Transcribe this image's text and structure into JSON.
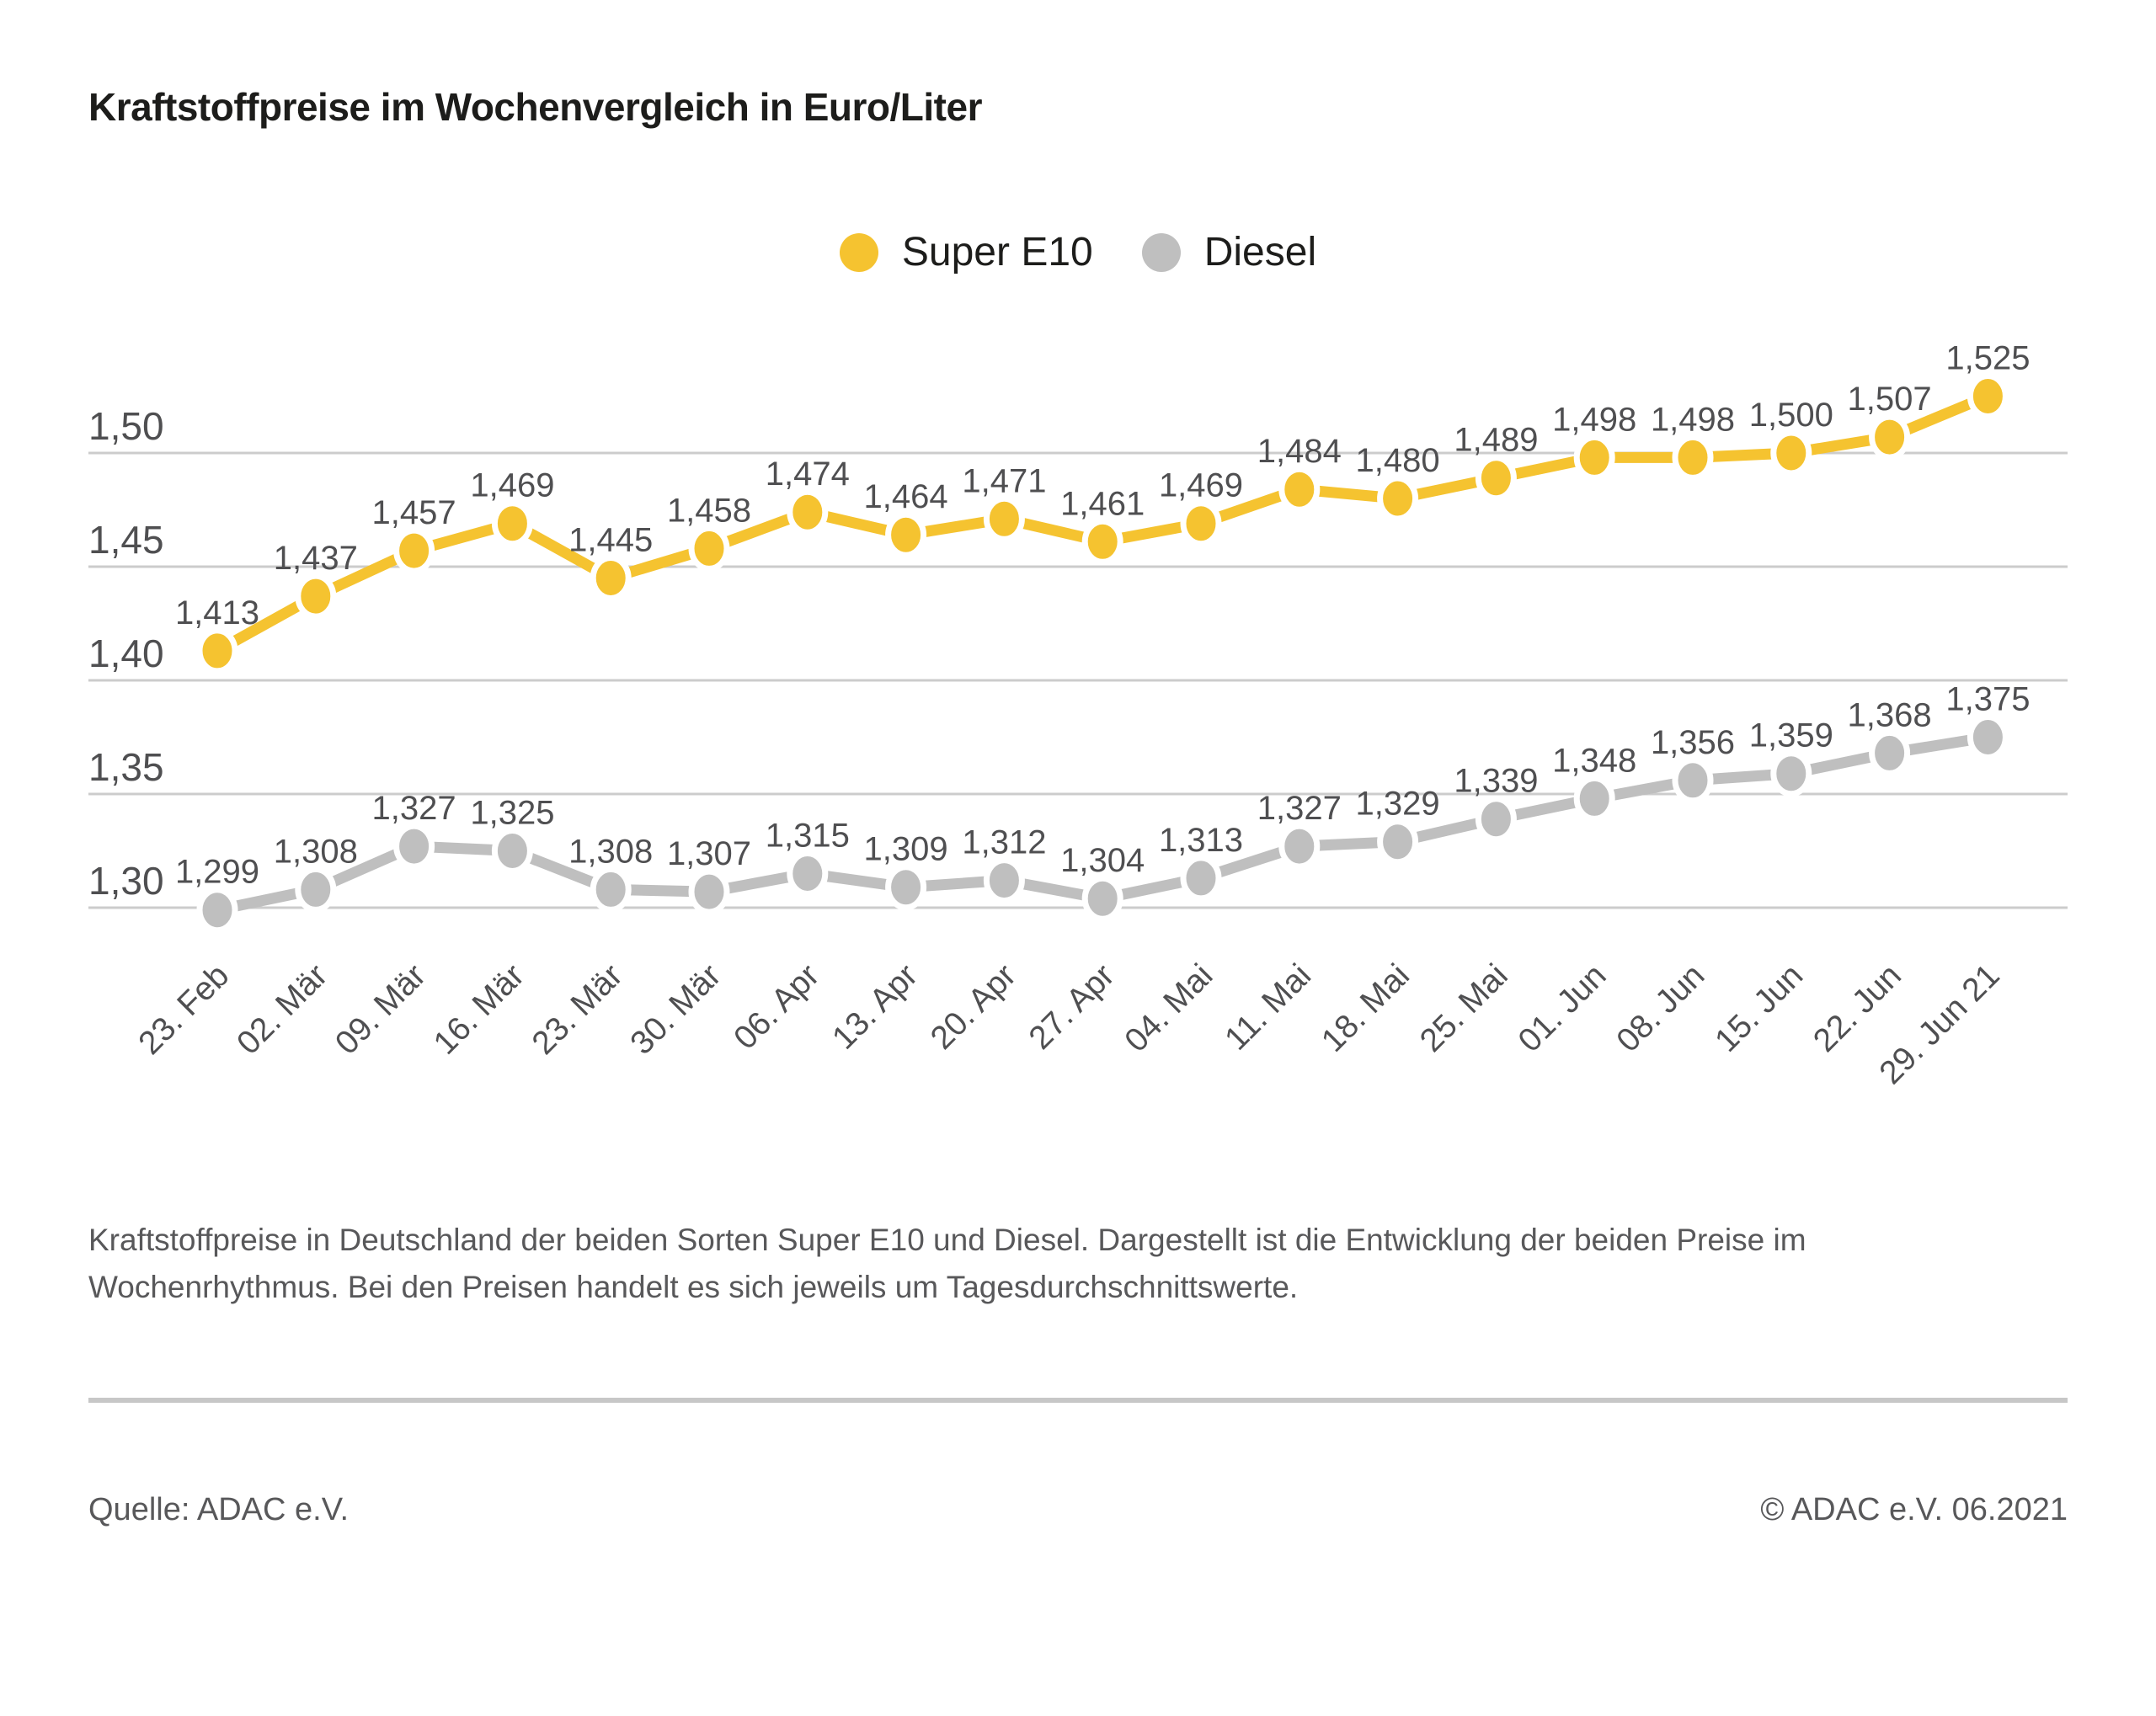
{
  "title": "Kraftstoffpreise im Wochenvergleich in Euro/Liter",
  "legend": {
    "items": [
      {
        "label": "Super E10",
        "color": "#f5c330"
      },
      {
        "label": "Diesel",
        "color": "#bfbfbf"
      }
    ]
  },
  "chart_data": {
    "type": "line",
    "title": "Kraftstoffpreise im Wochenvergleich in Euro/Liter",
    "xlabel": "",
    "ylabel": "Euro/Liter",
    "grid": true,
    "legend_position": "top-center",
    "ylim": [
      1.275,
      1.55
    ],
    "categories": [
      "23. Feb",
      "02. Mär",
      "09. Mär",
      "16. Mär",
      "23. Mär",
      "30. Mär",
      "06. Apr",
      "13. Apr",
      "20. Apr",
      "27. Apr",
      "04. Mai",
      "11. Mai",
      "18. Mai",
      "25. Mai",
      "01. Jun",
      "08. Jun",
      "15. Jun",
      "22. Jun",
      "29. Jun 21"
    ],
    "y_ticks": [
      {
        "label": "1,50",
        "value": 1.5
      },
      {
        "label": "1,45",
        "value": 1.45
      },
      {
        "label": "1,40",
        "value": 1.4
      },
      {
        "label": "1,35",
        "value": 1.35
      },
      {
        "label": "1,30",
        "value": 1.3
      }
    ],
    "series": [
      {
        "name": "Diesel",
        "color": "#bfbfbf",
        "values": [
          1.299,
          1.308,
          1.327,
          1.325,
          1.308,
          1.307,
          1.315,
          1.309,
          1.312,
          1.304,
          1.313,
          1.327,
          1.329,
          1.339,
          1.348,
          1.356,
          1.359,
          1.368,
          1.375
        ],
        "labels": [
          "1,299",
          "1,308",
          "1,327",
          "1,325",
          "1,308",
          "1,307",
          "1,315",
          "1,309",
          "1,312",
          "1,304",
          "1,313",
          "1,327",
          "1,329",
          "1,339",
          "1,348",
          "1,356",
          "1,359",
          "1,368",
          "1,375"
        ]
      },
      {
        "name": "Super E10",
        "color": "#f5c330",
        "values": [
          1.413,
          1.437,
          1.457,
          1.469,
          1.445,
          1.458,
          1.474,
          1.464,
          1.471,
          1.461,
          1.469,
          1.484,
          1.48,
          1.489,
          1.498,
          1.498,
          1.5,
          1.507,
          1.525
        ],
        "labels": [
          "1,413",
          "1,437",
          "1,457",
          "1,469",
          "1,445",
          "1,458",
          "1,474",
          "1,464",
          "1,471",
          "1,461",
          "1,469",
          "1,484",
          "1,480",
          "1,489",
          "1,498",
          "1,498",
          "1,500",
          "1,507",
          "1,525"
        ]
      }
    ]
  },
  "description": "Kraftstoffpreise in Deutschland der beiden Sorten Super E10 und Diesel. Dargestellt ist die Entwicklung der beiden Preise im Wochenrhythmus. Bei den Preisen handelt es sich jeweils um Tagesdurchschnittswerte.",
  "footer": {
    "source": "Quelle: ADAC e.V.",
    "copyright": "© ADAC e.V. 06.2021"
  }
}
